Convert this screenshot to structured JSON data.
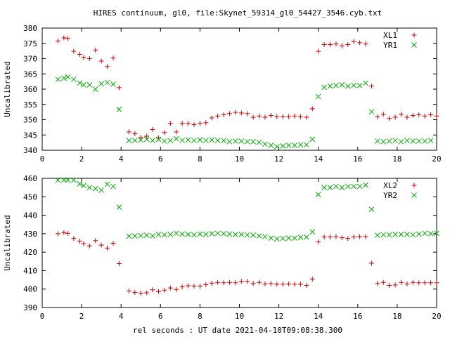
{
  "title": "HIRES continuum, gl0, file:Skynet_59314_gl0_54427_3546.cyb.txt",
  "xlabel": "rel seconds : UT date 2021-04-10T09:08:38.300",
  "colors": {
    "red": "#cc0000",
    "green": "#00aa00",
    "axis": "#000000"
  },
  "chart_data": [
    {
      "type": "scatter",
      "ylabel": "Uncalibrated",
      "xlim": [
        0,
        20
      ],
      "ylim": [
        340,
        380
      ],
      "xticks": [
        "0",
        "2",
        "4",
        "6",
        "8",
        "10",
        "12",
        "14",
        "16",
        "18",
        "20"
      ],
      "yticks": [
        "340",
        "345",
        "350",
        "355",
        "360",
        "365",
        "370",
        "375",
        "380"
      ],
      "legend_position": "top-right",
      "series": [
        {
          "name": "XL1",
          "marker": "plus",
          "color": "#cc0000",
          "points": [
            [
              0.8,
              375.8
            ],
            [
              1.1,
              376.8
            ],
            [
              1.3,
              376.6
            ],
            [
              1.6,
              372.4
            ],
            [
              1.9,
              371.4
            ],
            [
              2.1,
              370.4
            ],
            [
              2.4,
              370.0
            ],
            [
              2.7,
              372.8
            ],
            [
              3.0,
              369.2
            ],
            [
              3.3,
              367.4
            ],
            [
              3.6,
              370.2
            ],
            [
              3.9,
              360.5
            ],
            [
              4.4,
              346.0
            ],
            [
              4.7,
              345.4
            ],
            [
              5.0,
              344.2
            ],
            [
              5.3,
              344.6
            ],
            [
              5.6,
              346.8
            ],
            [
              5.9,
              344.0
            ],
            [
              6.2,
              345.8
            ],
            [
              6.5,
              348.8
            ],
            [
              6.8,
              346.0
            ],
            [
              7.1,
              348.8
            ],
            [
              7.4,
              348.8
            ],
            [
              7.7,
              348.4
            ],
            [
              8.0,
              348.8
            ],
            [
              8.3,
              349.0
            ],
            [
              8.6,
              350.6
            ],
            [
              8.9,
              351.2
            ],
            [
              9.2,
              351.6
            ],
            [
              9.5,
              352.0
            ],
            [
              9.8,
              352.4
            ],
            [
              10.1,
              352.2
            ],
            [
              10.4,
              352.0
            ],
            [
              10.7,
              350.8
            ],
            [
              11.0,
              351.2
            ],
            [
              11.3,
              350.8
            ],
            [
              11.6,
              351.4
            ],
            [
              11.9,
              351.0
            ],
            [
              12.2,
              351.0
            ],
            [
              12.5,
              351.0
            ],
            [
              12.8,
              351.2
            ],
            [
              13.1,
              351.0
            ],
            [
              13.4,
              350.8
            ],
            [
              13.7,
              353.6
            ],
            [
              14.0,
              372.4
            ],
            [
              14.3,
              374.6
            ],
            [
              14.6,
              374.6
            ],
            [
              14.9,
              374.8
            ],
            [
              15.2,
              374.2
            ],
            [
              15.5,
              374.6
            ],
            [
              15.8,
              375.6
            ],
            [
              16.1,
              375.2
            ],
            [
              16.4,
              374.8
            ],
            [
              16.7,
              361.0
            ],
            [
              17.0,
              351.0
            ],
            [
              17.3,
              351.8
            ],
            [
              17.6,
              350.4
            ],
            [
              17.9,
              350.8
            ],
            [
              18.2,
              351.8
            ],
            [
              18.5,
              350.8
            ],
            [
              18.8,
              351.4
            ],
            [
              19.1,
              351.6
            ],
            [
              19.4,
              351.2
            ],
            [
              19.7,
              351.6
            ],
            [
              20.0,
              351.2
            ]
          ]
        },
        {
          "name": "YR1",
          "marker": "cross",
          "color": "#00aa00",
          "points": [
            [
              0.8,
              363.2
            ],
            [
              1.1,
              363.6
            ],
            [
              1.3,
              364.0
            ],
            [
              1.6,
              363.2
            ],
            [
              1.9,
              362.0
            ],
            [
              2.1,
              361.4
            ],
            [
              2.4,
              361.4
            ],
            [
              2.7,
              360.0
            ],
            [
              3.0,
              361.8
            ],
            [
              3.3,
              362.2
            ],
            [
              3.6,
              361.6
            ],
            [
              3.9,
              353.4
            ],
            [
              4.4,
              343.2
            ],
            [
              4.7,
              343.2
            ],
            [
              5.0,
              343.4
            ],
            [
              5.3,
              343.6
            ],
            [
              5.6,
              343.2
            ],
            [
              5.9,
              343.6
            ],
            [
              6.2,
              343.0
            ],
            [
              6.5,
              343.2
            ],
            [
              6.8,
              343.8
            ],
            [
              7.1,
              343.2
            ],
            [
              7.4,
              343.4
            ],
            [
              7.7,
              343.2
            ],
            [
              8.0,
              343.4
            ],
            [
              8.3,
              343.2
            ],
            [
              8.6,
              343.4
            ],
            [
              8.9,
              343.2
            ],
            [
              9.2,
              343.2
            ],
            [
              9.5,
              342.8
            ],
            [
              9.8,
              343.0
            ],
            [
              10.1,
              343.0
            ],
            [
              10.4,
              342.8
            ],
            [
              10.7,
              342.8
            ],
            [
              11.0,
              342.6
            ],
            [
              11.3,
              342.0
            ],
            [
              11.6,
              341.6
            ],
            [
              11.9,
              341.2
            ],
            [
              12.2,
              341.4
            ],
            [
              12.5,
              341.6
            ],
            [
              12.8,
              341.6
            ],
            [
              13.1,
              341.8
            ],
            [
              13.4,
              341.8
            ],
            [
              13.7,
              343.6
            ],
            [
              14.0,
              357.6
            ],
            [
              14.3,
              360.6
            ],
            [
              14.6,
              361.0
            ],
            [
              14.9,
              361.2
            ],
            [
              15.2,
              361.4
            ],
            [
              15.5,
              361.0
            ],
            [
              15.8,
              361.2
            ],
            [
              16.1,
              361.2
            ],
            [
              16.4,
              362.0
            ],
            [
              16.7,
              352.6
            ],
            [
              17.0,
              343.0
            ],
            [
              17.3,
              342.8
            ],
            [
              17.6,
              343.0
            ],
            [
              17.9,
              343.2
            ],
            [
              18.2,
              342.8
            ],
            [
              18.5,
              343.2
            ],
            [
              18.8,
              343.0
            ],
            [
              19.1,
              343.0
            ],
            [
              19.4,
              343.0
            ],
            [
              19.7,
              343.2
            ]
          ]
        }
      ]
    },
    {
      "type": "scatter",
      "ylabel": "Uncalibrated",
      "xlim": [
        0,
        20
      ],
      "ylim": [
        390,
        460
      ],
      "xticks": [
        "0",
        "2",
        "4",
        "6",
        "8",
        "10",
        "12",
        "14",
        "16",
        "18",
        "20"
      ],
      "yticks": [
        "390",
        "400",
        "410",
        "420",
        "430",
        "440",
        "450",
        "460"
      ],
      "legend_position": "top-right",
      "series": [
        {
          "name": "XL2",
          "marker": "plus",
          "color": "#cc0000",
          "points": [
            [
              0.8,
              430.0
            ],
            [
              1.1,
              430.6
            ],
            [
              1.3,
              430.2
            ],
            [
              1.6,
              427.4
            ],
            [
              1.9,
              426.0
            ],
            [
              2.1,
              424.6
            ],
            [
              2.4,
              423.4
            ],
            [
              2.7,
              426.2
            ],
            [
              3.0,
              423.8
            ],
            [
              3.3,
              422.2
            ],
            [
              3.6,
              424.8
            ],
            [
              3.9,
              413.8
            ],
            [
              4.4,
              399.0
            ],
            [
              4.7,
              398.2
            ],
            [
              5.0,
              397.8
            ],
            [
              5.3,
              398.0
            ],
            [
              5.6,
              399.6
            ],
            [
              5.9,
              398.6
            ],
            [
              6.2,
              399.4
            ],
            [
              6.5,
              400.6
            ],
            [
              6.8,
              399.8
            ],
            [
              7.1,
              401.2
            ],
            [
              7.4,
              401.8
            ],
            [
              7.7,
              401.6
            ],
            [
              8.0,
              401.6
            ],
            [
              8.3,
              402.4
            ],
            [
              8.6,
              403.2
            ],
            [
              8.9,
              403.6
            ],
            [
              9.2,
              403.4
            ],
            [
              9.5,
              403.6
            ],
            [
              9.8,
              403.4
            ],
            [
              10.1,
              404.2
            ],
            [
              10.4,
              404.2
            ],
            [
              10.7,
              403.0
            ],
            [
              11.0,
              403.6
            ],
            [
              11.3,
              402.8
            ],
            [
              11.6,
              403.0
            ],
            [
              11.9,
              402.6
            ],
            [
              12.2,
              402.6
            ],
            [
              12.5,
              402.8
            ],
            [
              12.8,
              402.6
            ],
            [
              13.1,
              402.6
            ],
            [
              13.4,
              402.0
            ],
            [
              13.7,
              405.4
            ],
            [
              14.0,
              425.6
            ],
            [
              14.3,
              428.2
            ],
            [
              14.6,
              428.2
            ],
            [
              14.9,
              428.4
            ],
            [
              15.2,
              427.8
            ],
            [
              15.5,
              427.4
            ],
            [
              15.8,
              428.2
            ],
            [
              16.1,
              428.4
            ],
            [
              16.4,
              428.4
            ],
            [
              16.7,
              414.0
            ],
            [
              17.0,
              403.0
            ],
            [
              17.3,
              403.6
            ],
            [
              17.6,
              402.0
            ],
            [
              17.9,
              402.2
            ],
            [
              18.2,
              403.6
            ],
            [
              18.5,
              402.8
            ],
            [
              18.8,
              403.6
            ],
            [
              19.1,
              403.4
            ],
            [
              19.4,
              403.4
            ],
            [
              19.7,
              403.4
            ],
            [
              20.0,
              403.4
            ]
          ]
        },
        {
          "name": "YR2",
          "marker": "cross",
          "color": "#00aa00",
          "points": [
            [
              0.8,
              459.0
            ],
            [
              1.1,
              459.0
            ],
            [
              1.3,
              459.0
            ],
            [
              1.6,
              459.0
            ],
            [
              1.9,
              457.0
            ],
            [
              2.1,
              456.0
            ],
            [
              2.4,
              455.0
            ],
            [
              2.7,
              454.4
            ],
            [
              3.0,
              453.6
            ],
            [
              3.3,
              456.8
            ],
            [
              3.6,
              455.6
            ],
            [
              3.9,
              444.4
            ],
            [
              4.4,
              428.6
            ],
            [
              4.7,
              428.8
            ],
            [
              5.0,
              429.0
            ],
            [
              5.3,
              429.2
            ],
            [
              5.6,
              428.8
            ],
            [
              5.9,
              429.6
            ],
            [
              6.2,
              429.4
            ],
            [
              6.5,
              429.6
            ],
            [
              6.8,
              430.2
            ],
            [
              7.1,
              429.8
            ],
            [
              7.4,
              429.6
            ],
            [
              7.7,
              429.4
            ],
            [
              8.0,
              429.8
            ],
            [
              8.3,
              429.6
            ],
            [
              8.6,
              430.0
            ],
            [
              8.9,
              430.2
            ],
            [
              9.2,
              430.0
            ],
            [
              9.5,
              429.8
            ],
            [
              9.8,
              429.6
            ],
            [
              10.1,
              429.6
            ],
            [
              10.4,
              429.4
            ],
            [
              10.7,
              429.2
            ],
            [
              11.0,
              428.8
            ],
            [
              11.3,
              428.4
            ],
            [
              11.6,
              427.6
            ],
            [
              11.9,
              427.2
            ],
            [
              12.2,
              427.4
            ],
            [
              12.5,
              427.6
            ],
            [
              12.8,
              427.6
            ],
            [
              13.1,
              428.0
            ],
            [
              13.4,
              428.2
            ],
            [
              13.7,
              431.0
            ],
            [
              14.0,
              451.2
            ],
            [
              14.3,
              455.0
            ],
            [
              14.6,
              455.0
            ],
            [
              14.9,
              455.6
            ],
            [
              15.2,
              455.0
            ],
            [
              15.5,
              455.6
            ],
            [
              15.8,
              455.6
            ],
            [
              16.1,
              455.6
            ],
            [
              16.4,
              456.4
            ],
            [
              16.7,
              443.2
            ],
            [
              17.0,
              429.2
            ],
            [
              17.3,
              429.4
            ],
            [
              17.6,
              429.4
            ],
            [
              17.9,
              429.6
            ],
            [
              18.2,
              429.6
            ],
            [
              18.5,
              429.6
            ],
            [
              18.8,
              429.4
            ],
            [
              19.1,
              429.8
            ],
            [
              19.4,
              430.2
            ],
            [
              19.7,
              430.0
            ],
            [
              20.0,
              430.2
            ]
          ]
        }
      ]
    }
  ]
}
